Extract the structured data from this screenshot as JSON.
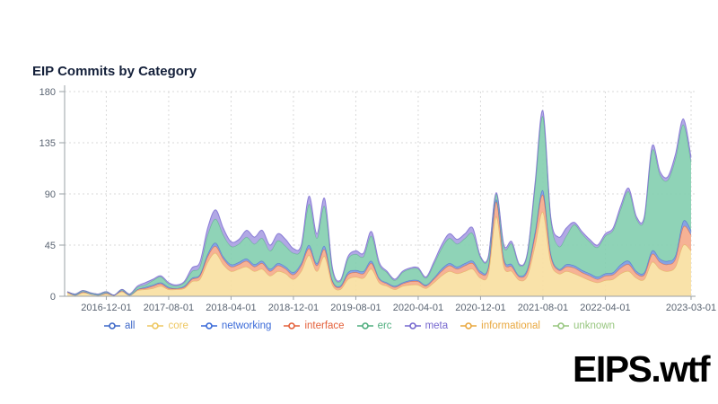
{
  "header": {
    "title": "EIP Commits by Category"
  },
  "branding": {
    "logo_text": "EIPS.wtf"
  },
  "chart_data": {
    "type": "area",
    "stacked": true,
    "title": "EIP Commits by Category",
    "xlabel": "",
    "ylabel": "",
    "ylim": [
      0,
      180
    ],
    "y_ticks": [
      0,
      45,
      90,
      135,
      180
    ],
    "grid": "dashed",
    "legend_position": "bottom",
    "x_interval": "monthly",
    "x_values": [
      "2016-07",
      "2016-08",
      "2016-09",
      "2016-10",
      "2016-11",
      "2016-12",
      "2017-01",
      "2017-02",
      "2017-03",
      "2017-04",
      "2017-05",
      "2017-06",
      "2017-07",
      "2017-08",
      "2017-09",
      "2017-10",
      "2017-11",
      "2017-12",
      "2018-01",
      "2018-02",
      "2018-03",
      "2018-04",
      "2018-05",
      "2018-06",
      "2018-07",
      "2018-08",
      "2018-09",
      "2018-10",
      "2018-11",
      "2018-12",
      "2019-01",
      "2019-02",
      "2019-03",
      "2019-04",
      "2019-05",
      "2019-06",
      "2019-07",
      "2019-08",
      "2019-09",
      "2019-10",
      "2019-11",
      "2019-12",
      "2020-01",
      "2020-02",
      "2020-03",
      "2020-04",
      "2020-05",
      "2020-06",
      "2020-07",
      "2020-08",
      "2020-09",
      "2020-10",
      "2020-11",
      "2020-12",
      "2021-01",
      "2021-02",
      "2021-03",
      "2021-04",
      "2021-05",
      "2021-06",
      "2021-07",
      "2021-08",
      "2021-09",
      "2021-10",
      "2021-11",
      "2021-12",
      "2022-01",
      "2022-02",
      "2022-03",
      "2022-04",
      "2022-05",
      "2022-06",
      "2022-07",
      "2022-08",
      "2022-09",
      "2022-10",
      "2022-11",
      "2022-12",
      "2023-01",
      "2023-02",
      "2023-03"
    ],
    "x_ticks": [
      {
        "label": "2016-12-01",
        "index": 5
      },
      {
        "label": "2017-08-01",
        "index": 13
      },
      {
        "label": "2018-04-01",
        "index": 21
      },
      {
        "label": "2018-12-01",
        "index": 29
      },
      {
        "label": "2019-08-01",
        "index": 37
      },
      {
        "label": "2020-04-01",
        "index": 45
      },
      {
        "label": "2020-12-01",
        "index": 53
      },
      {
        "label": "2021-08-01",
        "index": 61
      },
      {
        "label": "2022-04-01",
        "index": 69
      },
      {
        "label": "2023-03-01",
        "index": 80
      }
    ],
    "series": [
      {
        "name": "all",
        "in_stack": false,
        "color": "#3e68c8",
        "fill": "none",
        "stroke": "#3e68c8",
        "values": [
          4,
          2,
          5,
          3,
          2,
          4,
          1,
          6,
          2,
          9,
          12,
          15,
          18,
          12,
          10,
          13,
          25,
          30,
          60,
          76,
          60,
          48,
          50,
          58,
          52,
          58,
          45,
          55,
          50,
          42,
          45,
          88,
          55,
          86,
          25,
          14,
          35,
          40,
          38,
          57,
          30,
          22,
          15,
          22,
          25,
          25,
          17,
          30,
          45,
          55,
          50,
          55,
          60,
          35,
          35,
          91,
          45,
          48,
          28,
          38,
          100,
          163,
          70,
          52,
          60,
          65,
          57,
          50,
          45,
          55,
          60,
          80,
          95,
          70,
          70,
          132,
          110,
          105,
          125,
          156,
          122
        ]
      },
      {
        "name": "core",
        "in_stack": true,
        "color": "#eec760",
        "fill": "#f8dfa2",
        "stroke": "#e0b45e",
        "values": [
          3,
          1,
          3,
          2,
          1,
          2,
          1,
          4,
          1,
          5,
          6,
          7,
          9,
          6,
          6,
          7,
          13,
          15,
          30,
          38,
          28,
          22,
          24,
          26,
          22,
          24,
          18,
          22,
          20,
          15,
          22,
          36,
          22,
          35,
          10,
          6,
          15,
          17,
          16,
          24,
          12,
          9,
          6,
          9,
          10,
          10,
          7,
          12,
          18,
          22,
          20,
          22,
          24,
          16,
          20,
          70,
          26,
          22,
          14,
          18,
          45,
          74,
          30,
          20,
          22,
          20,
          17,
          14,
          12,
          14,
          15,
          20,
          22,
          16,
          15,
          30,
          24,
          22,
          26,
          45,
          40
        ]
      },
      {
        "name": "interface",
        "in_stack": true,
        "color": "#e4603a",
        "fill": "#f5ab8c",
        "stroke": "#e1673f",
        "values": [
          1,
          0,
          1,
          0,
          0,
          1,
          0,
          1,
          0,
          1,
          1,
          2,
          2,
          1,
          1,
          1,
          2,
          3,
          5,
          6,
          5,
          4,
          4,
          5,
          4,
          5,
          4,
          5,
          4,
          4,
          5,
          6,
          5,
          6,
          3,
          2,
          4,
          4,
          4,
          5,
          3,
          2,
          2,
          2,
          3,
          3,
          2,
          3,
          4,
          5,
          4,
          5,
          5,
          4,
          5,
          13,
          5,
          4,
          3,
          4,
          9,
          15,
          6,
          3,
          4,
          5,
          4,
          4,
          3,
          4,
          4,
          5,
          6,
          4,
          4,
          7,
          6,
          6,
          7,
          16,
          14
        ]
      },
      {
        "name": "networking",
        "in_stack": true,
        "color": "#3a6ad8",
        "fill": "#7e9ae0",
        "stroke": "#4a6fd2",
        "values": [
          0,
          0,
          0,
          0,
          0,
          0,
          0,
          0,
          0,
          0,
          1,
          1,
          1,
          1,
          0,
          1,
          1,
          1,
          2,
          3,
          2,
          2,
          2,
          2,
          2,
          2,
          2,
          2,
          2,
          2,
          2,
          3,
          2,
          3,
          1,
          1,
          2,
          2,
          2,
          2,
          1,
          1,
          1,
          1,
          1,
          1,
          1,
          1,
          2,
          2,
          2,
          2,
          2,
          2,
          1,
          2,
          2,
          2,
          1,
          2,
          3,
          4,
          2,
          1,
          2,
          2,
          2,
          2,
          2,
          2,
          2,
          3,
          3,
          2,
          2,
          3,
          3,
          3,
          3,
          5,
          4
        ]
      },
      {
        "name": "erc",
        "in_stack": true,
        "color": "#4fae7e",
        "fill": "#86cfb1",
        "stroke": "#5cb08a",
        "values": [
          0,
          1,
          1,
          1,
          1,
          1,
          0,
          1,
          1,
          2,
          2,
          4,
          5,
          3,
          2,
          3,
          6,
          7,
          17,
          21,
          19,
          16,
          16,
          19,
          18,
          20,
          16,
          20,
          18,
          17,
          13,
          36,
          22,
          35,
          9,
          4,
          12,
          14,
          13,
          22,
          12,
          9,
          5,
          9,
          10,
          10,
          6,
          12,
          18,
          22,
          20,
          22,
          24,
          12,
          8,
          5,
          10,
          18,
          9,
          13,
          40,
          65,
          30,
          20,
          25,
          36,
          32,
          28,
          26,
          33,
          37,
          49,
          61,
          46,
          47,
          88,
          74,
          71,
          85,
          85,
          60
        ]
      },
      {
        "name": "meta",
        "in_stack": true,
        "color": "#7668cf",
        "fill": "#aaa1e3",
        "stroke": "#7f70d2",
        "values": [
          0,
          0,
          0,
          0,
          0,
          0,
          0,
          0,
          0,
          1,
          2,
          1,
          1,
          1,
          1,
          1,
          3,
          4,
          6,
          8,
          6,
          4,
          4,
          6,
          6,
          7,
          5,
          6,
          6,
          4,
          3,
          7,
          4,
          7,
          2,
          1,
          2,
          3,
          3,
          4,
          2,
          1,
          1,
          1,
          1,
          1,
          1,
          2,
          3,
          4,
          4,
          4,
          5,
          1,
          1,
          1,
          2,
          2,
          1,
          1,
          3,
          5,
          2,
          8,
          7,
          2,
          2,
          2,
          2,
          2,
          2,
          3,
          3,
          2,
          2,
          4,
          3,
          3,
          4,
          5,
          4
        ]
      },
      {
        "name": "informational",
        "in_stack": false,
        "color": "#e9a83f",
        "fill": "none",
        "stroke": "#e9a83f",
        "values": [
          0,
          0,
          0,
          0,
          0,
          0,
          0,
          0,
          0,
          0,
          0,
          0,
          0,
          0,
          0,
          0,
          0,
          0,
          0,
          0,
          0,
          0,
          0,
          0,
          0,
          0,
          0,
          0,
          0,
          0,
          0,
          0,
          0,
          0,
          0,
          0,
          0,
          0,
          0,
          0,
          0,
          0,
          0,
          0,
          0,
          0,
          0,
          0,
          0,
          0,
          0,
          0,
          0,
          0,
          0,
          0,
          0,
          0,
          0,
          0,
          0,
          0,
          0,
          0,
          0,
          0,
          0,
          0,
          0,
          0,
          0,
          0,
          0,
          0,
          0,
          0,
          0,
          0,
          0,
          0,
          0
        ]
      },
      {
        "name": "unknown",
        "in_stack": false,
        "color": "#97c67f",
        "fill": "none",
        "stroke": "#97c67f",
        "values": [
          0,
          0,
          0,
          0,
          0,
          0,
          0,
          0,
          0,
          0,
          0,
          0,
          0,
          0,
          0,
          0,
          0,
          0,
          0,
          0,
          0,
          0,
          0,
          0,
          0,
          0,
          0,
          0,
          0,
          0,
          0,
          0,
          0,
          0,
          0,
          0,
          0,
          0,
          0,
          0,
          0,
          0,
          0,
          0,
          0,
          0,
          0,
          0,
          0,
          0,
          0,
          0,
          0,
          0,
          0,
          0,
          0,
          0,
          0,
          0,
          0,
          0,
          0,
          0,
          0,
          0,
          0,
          0,
          0,
          0,
          0,
          0,
          0,
          0,
          0,
          0,
          0,
          0,
          0,
          0,
          0
        ]
      }
    ],
    "legend": [
      {
        "label": "all",
        "color": "#3e68c8"
      },
      {
        "label": "core",
        "color": "#eec760"
      },
      {
        "label": "networking",
        "color": "#3a6ad8"
      },
      {
        "label": "interface",
        "color": "#e4603a"
      },
      {
        "label": "erc",
        "color": "#4fae7e"
      },
      {
        "label": "meta",
        "color": "#7668cf"
      },
      {
        "label": "informational",
        "color": "#e9a83f"
      },
      {
        "label": "unknown",
        "color": "#97c67f"
      }
    ]
  }
}
